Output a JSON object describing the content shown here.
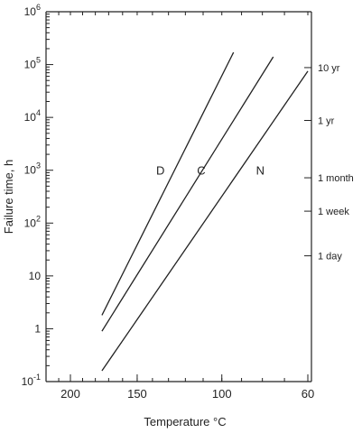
{
  "chart_data": {
    "type": "line",
    "title": "",
    "xlabel": "Temperature °C",
    "ylabel": "Failure time, h",
    "x_ticks": [
      {
        "value": 200,
        "label": "200"
      },
      {
        "value": 150,
        "label": "150"
      },
      {
        "value": 100,
        "label": "100"
      },
      {
        "value": 60,
        "label": "60"
      }
    ],
    "y_scale": "log",
    "y_ticks": [
      {
        "value": 0.1,
        "base": "10",
        "exp": "-1"
      },
      {
        "value": 1,
        "base": "1",
        "exp": ""
      },
      {
        "value": 10,
        "base": "10",
        "exp": ""
      },
      {
        "value": 100,
        "base": "10",
        "exp": "2"
      },
      {
        "value": 1000,
        "base": "10",
        "exp": "3"
      },
      {
        "value": 10000,
        "base": "10",
        "exp": "4"
      },
      {
        "value": 100000,
        "base": "10",
        "exp": "5"
      },
      {
        "value": 1000000,
        "base": "10",
        "exp": "6"
      }
    ],
    "right_axis_ticks": [
      {
        "value": 87600,
        "label": "10 yr"
      },
      {
        "value": 8760,
        "label": "1 yr"
      },
      {
        "value": 720,
        "label": "1 month"
      },
      {
        "value": 168,
        "label": "1 week"
      },
      {
        "value": 24,
        "label": "1 day"
      }
    ],
    "series": [
      {
        "name": "D",
        "label_at": {
          "x": 135,
          "y": 1000
        },
        "points": [
          {
            "x": 175,
            "y": 1.8
          },
          {
            "x": 94,
            "y": 170000
          }
        ]
      },
      {
        "name": "C",
        "label_at": {
          "x": 111,
          "y": 1000
        },
        "points": [
          {
            "x": 175,
            "y": 0.9
          },
          {
            "x": 75,
            "y": 140000
          }
        ]
      },
      {
        "name": "N",
        "label_at": {
          "x": 81,
          "y": 1000
        },
        "points": [
          {
            "x": 175,
            "y": 0.16
          },
          {
            "x": 60,
            "y": 75000
          }
        ]
      }
    ]
  }
}
